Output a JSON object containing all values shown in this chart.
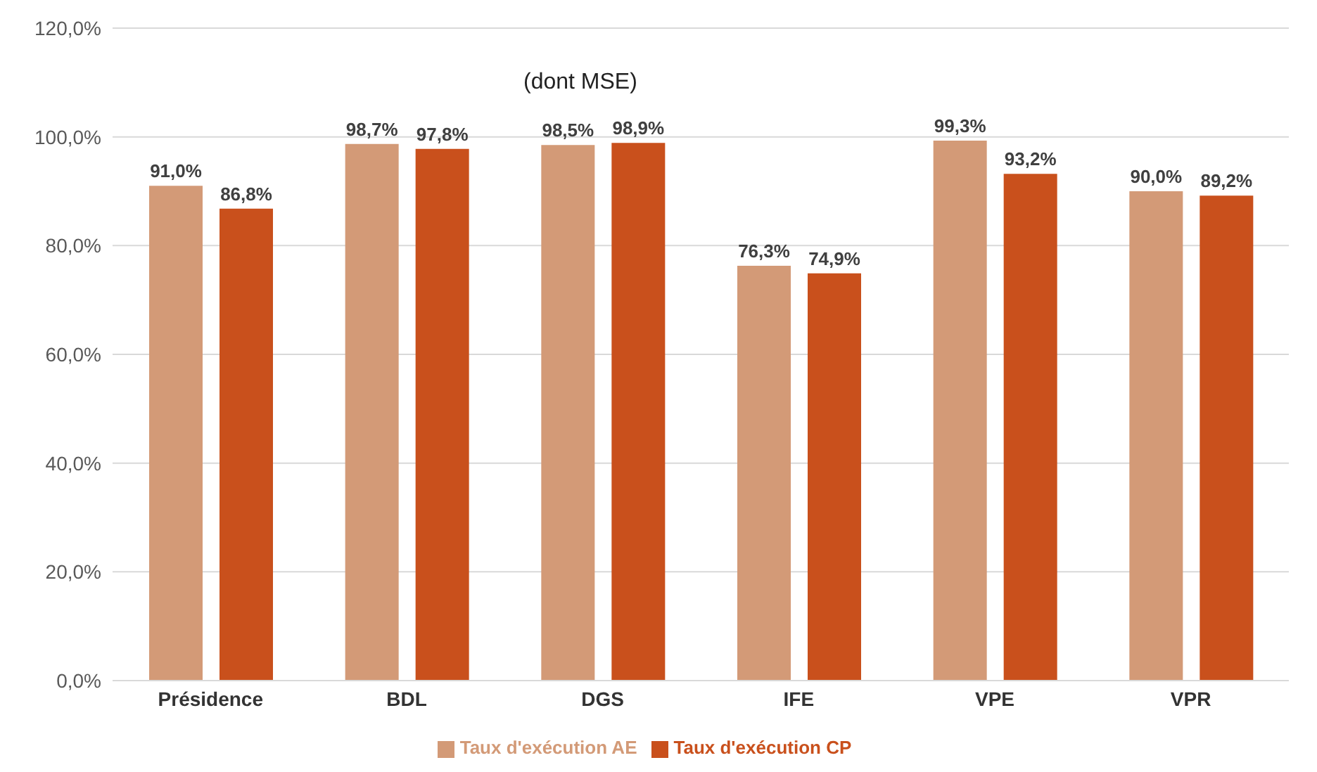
{
  "chart_data": {
    "type": "bar",
    "categories": [
      "Présidence",
      "BDL",
      "DGS",
      "IFE",
      "VPE",
      "VPR"
    ],
    "series": [
      {
        "name": "Taux d'exécution AE",
        "color": "#d39a77",
        "values": [
          91.0,
          98.7,
          98.5,
          76.3,
          99.3,
          90.0
        ],
        "value_labels": [
          "91,0%",
          "98,7%",
          "98,5%",
          "76,3%",
          "99,3%",
          "90,0%"
        ]
      },
      {
        "name": "Taux d'exécution CP",
        "color": "#c9501c",
        "values": [
          86.8,
          97.8,
          98.9,
          74.9,
          93.2,
          89.2
        ],
        "value_labels": [
          "86,8%",
          "97,8%",
          "98,9%",
          "74,9%",
          "93,2%",
          "89,2%"
        ]
      }
    ],
    "ylim": [
      0,
      120
    ],
    "yticks": [
      {
        "value": 0,
        "label": "0,0%"
      },
      {
        "value": 20,
        "label": "20,0%"
      },
      {
        "value": 40,
        "label": "40,0%"
      },
      {
        "value": 60,
        "label": "60,0%"
      },
      {
        "value": 80,
        "label": "80,0%"
      },
      {
        "value": 100,
        "label": "100,0%"
      },
      {
        "value": 120,
        "label": "120,0%"
      }
    ],
    "annotations": [
      "(dont MSE)"
    ],
    "grid": "y",
    "legend": "bottom"
  }
}
